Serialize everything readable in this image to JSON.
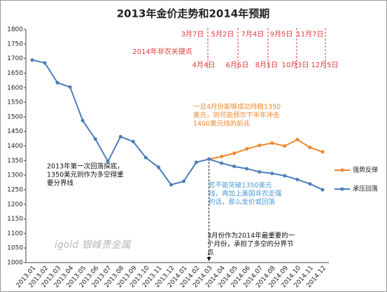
{
  "chart_data": {
    "type": "line",
    "title": "2013年金价走势和2014年预期",
    "categories": [
      "2013.01",
      "2013.02",
      "2013.03",
      "2013.04",
      "2013.05",
      "2013.06",
      "2013.07",
      "2013.08",
      "2013.09",
      "2013.10",
      "2013.11",
      "2013.12",
      "2014.01",
      "2014.02",
      "2014.03",
      "2014.04",
      "2014.05",
      "2014.06",
      "2014.07",
      "2014.08",
      "2014.09",
      "2014.10",
      "2014.11",
      "2014.12"
    ],
    "series": [
      {
        "name": "强势反弹",
        "color": "#f0872c",
        "values": [
          null,
          null,
          null,
          null,
          null,
          null,
          null,
          null,
          null,
          null,
          null,
          null,
          null,
          null,
          1355,
          1364,
          1375,
          1390,
          1402,
          1410,
          1400,
          1422,
          1395,
          1380
        ]
      },
      {
        "name": "承压回落",
        "color": "#4a7ebb",
        "values": [
          1695,
          1685,
          1617,
          1602,
          1487,
          1424,
          1347,
          1432,
          1415,
          1360,
          1327,
          1267,
          1279,
          1344,
          1355,
          1341,
          1330,
          1322,
          1311,
          1306,
          1298,
          1285,
          1270,
          1250
        ]
      }
    ],
    "ylim": [
      1000,
      1800
    ],
    "yticks": [
      1000,
      1050,
      1100,
      1150,
      1200,
      1250,
      1300,
      1350,
      1400,
      1450,
      1500,
      1550,
      1600,
      1650,
      1700,
      1750,
      1800
    ],
    "grid": false,
    "key_dates_label": "2014年非农关键点",
    "key_dates_top": [
      "3月7日",
      "5月2日",
      "7月4日",
      "9月5日",
      "11月7日"
    ],
    "key_dates_bottom": [
      "4月4日",
      "6月6日",
      "8月1日",
      "10月3日",
      "12月5日"
    ],
    "note_rebound": [
      "一旦4月份能够成功持稳1350",
      "美元，则可能预示下半年冲击",
      "1400美元线的前兆"
    ],
    "note_fall": [
      "若不能突破1350美元",
      "线，再加上美国非农走强",
      "的话，那么金价或回落"
    ],
    "note_2013": [
      "2013年第一次回落探底，",
      "1350美元则作为多空得重",
      "要分界线"
    ],
    "note_march": [
      "3月份作为2014年最重要的一",
      "个月份，承担了多空的分界节",
      "点"
    ],
    "watermark": "igold 银峰贵金属"
  }
}
